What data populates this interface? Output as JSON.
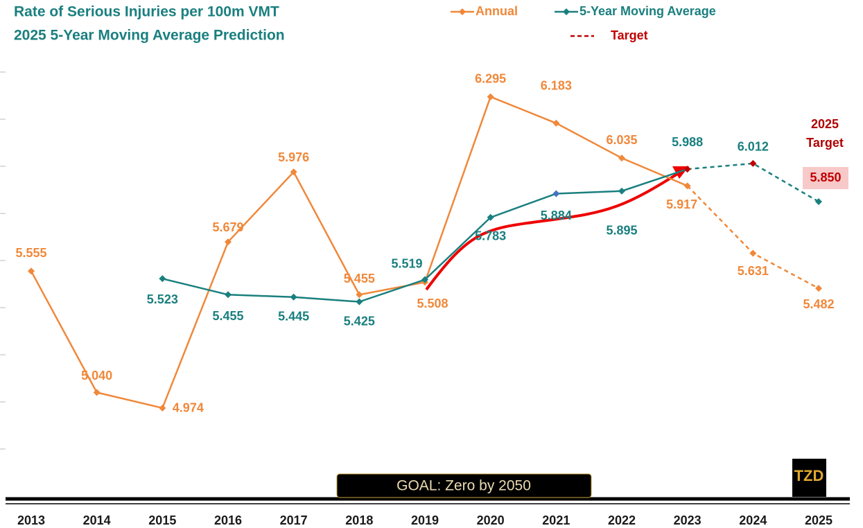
{
  "chart_data": {
    "type": "line",
    "title": "Rate of Serious Injuries per 100m VMT",
    "subtitle": "2025 5-Year Moving Average Prediction",
    "categories": [
      "2013",
      "2014",
      "2015",
      "2016",
      "2017",
      "2018",
      "2019",
      "2020",
      "2021",
      "2022",
      "2023",
      "2024",
      "2025"
    ],
    "dash_from": "2023",
    "series": [
      {
        "name": "Annual",
        "color": "#f0883a",
        "values": [
          5.555,
          5.04,
          4.974,
          5.679,
          5.976,
          5.455,
          5.508,
          6.295,
          6.183,
          6.035,
          5.917,
          5.631,
          5.482
        ],
        "value_labels": [
          "5.555",
          "5.040",
          "4.974",
          "5.679",
          "5.976",
          "5.455",
          "5.508",
          "6.295",
          "6.183",
          "6.035",
          "5.917",
          "5.631",
          "5.482"
        ],
        "marker_colors": [
          null,
          null,
          null,
          null,
          null,
          null,
          null,
          null,
          null,
          null,
          null,
          null,
          null
        ]
      },
      {
        "name": "5-Year Moving Average",
        "color": "#1a7f7f",
        "values": [
          null,
          null,
          5.523,
          5.455,
          5.445,
          5.425,
          5.519,
          5.783,
          5.884,
          5.895,
          5.988,
          6.012,
          5.85
        ],
        "value_labels": [
          null,
          null,
          "5.523",
          "5.455",
          "5.445",
          "5.425",
          "5.519",
          "5.783",
          "5.884",
          "5.895",
          "5.988",
          "6.012",
          "5.850"
        ],
        "marker_colors": [
          null,
          null,
          null,
          null,
          null,
          null,
          null,
          null,
          "#4472c4",
          null,
          "#c00000",
          "#c00000",
          null
        ]
      }
    ],
    "target_legend": {
      "name": "Target",
      "color": "#c00000"
    },
    "target_annotation": [
      "2025",
      "Target"
    ],
    "goal": "GOAL:  Zero by 2050",
    "logo": "TZD",
    "ylim": [
      4.6,
      6.7
    ],
    "yticks": [
      4.8,
      5.0,
      5.2,
      5.4,
      5.6,
      5.8,
      6.0,
      6.2,
      6.4
    ]
  }
}
